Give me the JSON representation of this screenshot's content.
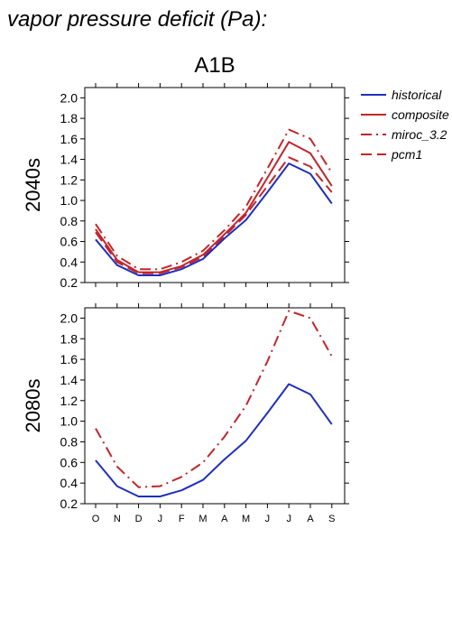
{
  "page_title": "vapor pressure deficit (Pa):",
  "panel_title": "A1B",
  "legend": [
    {
      "label": "historical",
      "color": "#1f2fbf",
      "dash": "solid"
    },
    {
      "label": "composite",
      "color": "#c0262b",
      "dash": "solid"
    },
    {
      "label": "miroc_3.2",
      "color": "#c0262b",
      "dash": "dashdot"
    },
    {
      "label": "pcm1",
      "color": "#c0262b",
      "dash": "dash"
    }
  ],
  "chart_data": [
    {
      "type": "line",
      "ylabel": "2040s",
      "ylim": [
        0.2,
        2.1
      ],
      "yticks": [
        "0.2",
        "0.4",
        "0.6",
        "0.8",
        "1.0",
        "1.2",
        "1.4",
        "1.6",
        "1.8",
        "2.0"
      ],
      "categories": [
        "O",
        "N",
        "D",
        "J",
        "F",
        "M",
        "A",
        "M",
        "J",
        "J",
        "A",
        "S"
      ],
      "show_xtick_labels": false,
      "series": [
        {
          "name": "historical",
          "values": [
            0.62,
            0.37,
            0.27,
            0.27,
            0.33,
            0.43,
            0.63,
            0.81,
            1.08,
            1.36,
            1.26,
            0.97
          ]
        },
        {
          "name": "composite",
          "values": [
            0.72,
            0.42,
            0.3,
            0.3,
            0.36,
            0.47,
            0.67,
            0.88,
            1.22,
            1.57,
            1.46,
            1.14
          ]
        },
        {
          "name": "miroc_3.2",
          "values": [
            0.77,
            0.46,
            0.33,
            0.33,
            0.4,
            0.51,
            0.71,
            0.94,
            1.31,
            1.69,
            1.6,
            1.27
          ]
        },
        {
          "name": "pcm1",
          "values": [
            0.69,
            0.4,
            0.29,
            0.29,
            0.35,
            0.45,
            0.65,
            0.86,
            1.14,
            1.42,
            1.33,
            1.08
          ]
        }
      ]
    },
    {
      "type": "line",
      "ylabel": "2080s",
      "ylim": [
        0.2,
        2.1
      ],
      "yticks": [
        "0.2",
        "0.4",
        "0.6",
        "0.8",
        "1.0",
        "1.2",
        "1.4",
        "1.6",
        "1.8",
        "2.0"
      ],
      "categories": [
        "O",
        "N",
        "D",
        "J",
        "F",
        "M",
        "A",
        "M",
        "J",
        "J",
        "A",
        "S"
      ],
      "show_xtick_labels": true,
      "series": [
        {
          "name": "historical",
          "values": [
            0.62,
            0.37,
            0.27,
            0.27,
            0.33,
            0.43,
            0.63,
            0.81,
            1.08,
            1.36,
            1.26,
            0.97
          ]
        },
        {
          "name": "miroc_3.2",
          "values": [
            0.93,
            0.56,
            0.36,
            0.37,
            0.46,
            0.6,
            0.85,
            1.15,
            1.58,
            2.07,
            2.0,
            1.63
          ]
        }
      ]
    }
  ]
}
